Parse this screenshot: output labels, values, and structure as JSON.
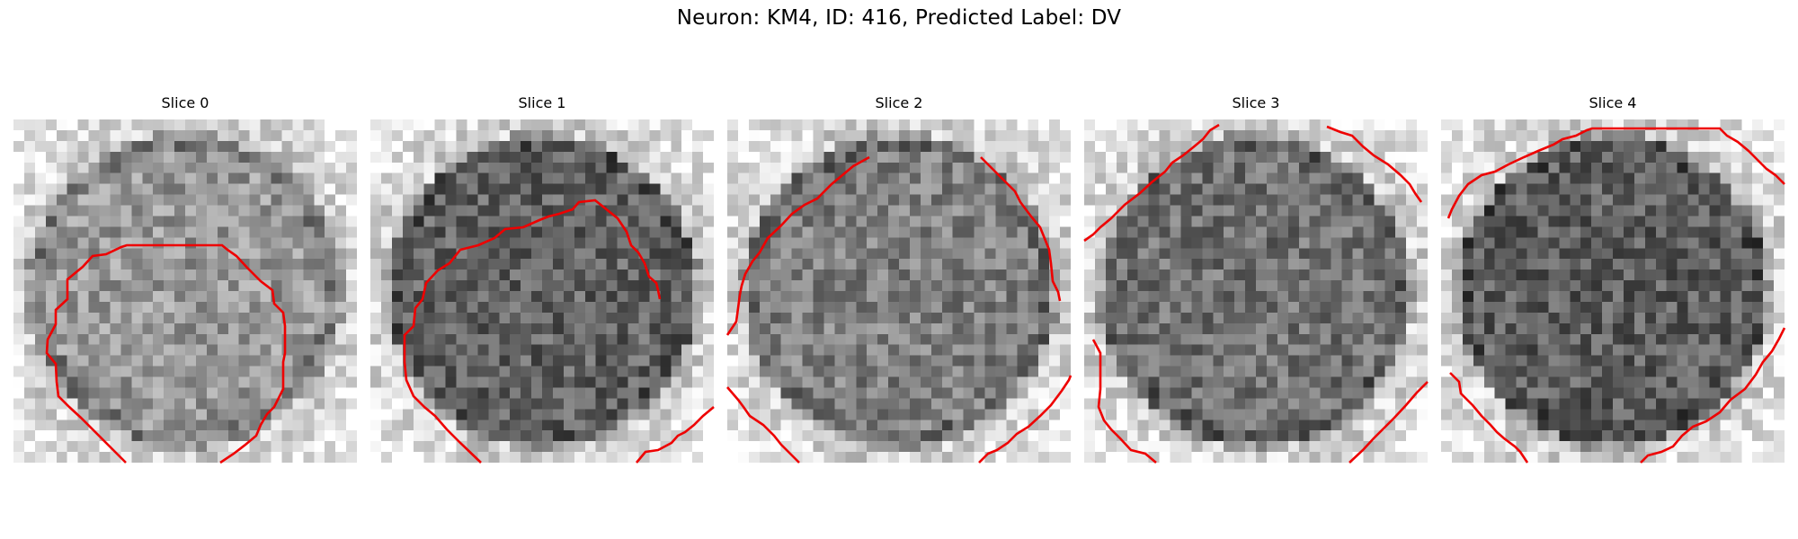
{
  "figure": {
    "title": "Neuron: KM4, ID: 416, Predicted Label: DV",
    "contour_color": "#ee0000",
    "colormap": "gray",
    "panels": [
      {
        "title": "Slice 0",
        "seed": 11,
        "darkness": 0.5
      },
      {
        "title": "Slice 1",
        "seed": 23,
        "darkness": 0.72
      },
      {
        "title": "Slice 2",
        "seed": 37,
        "darkness": 0.6
      },
      {
        "title": "Slice 3",
        "seed": 51,
        "darkness": 0.66
      },
      {
        "title": "Slice 4",
        "seed": 67,
        "darkness": 0.74
      }
    ]
  }
}
